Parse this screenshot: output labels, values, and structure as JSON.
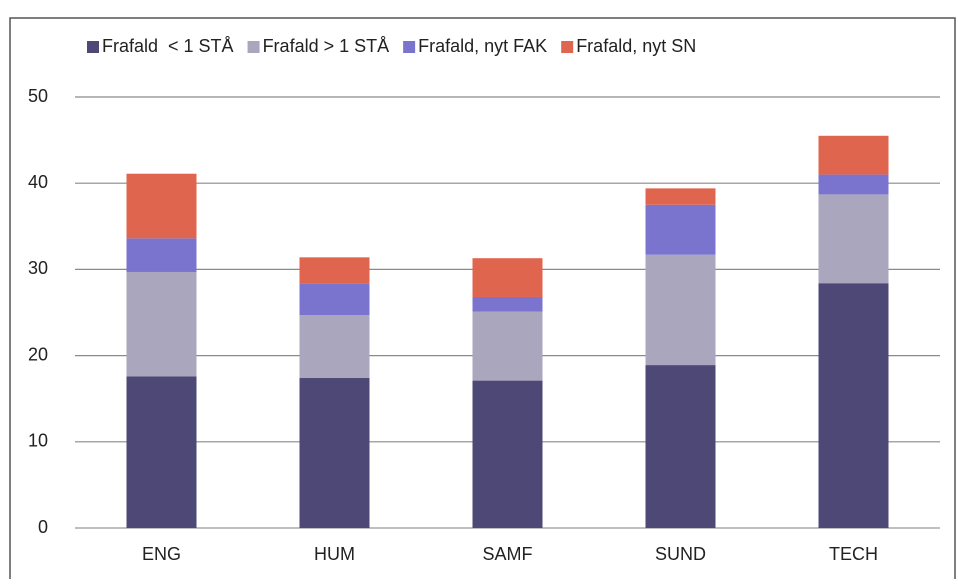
{
  "chart_data": {
    "type": "stacked_bar",
    "categories": [
      "ENG",
      "HUM",
      "SAMF",
      "SUND",
      "TECH"
    ],
    "series": [
      {
        "name": "Frafald  < 1 STÅ",
        "color": "#4e4876",
        "values": [
          17.6,
          17.4,
          17.1,
          18.9,
          28.4
        ]
      },
      {
        "name": "Frafald > 1 STÅ",
        "color": "#a9a6bd",
        "values": [
          12.1,
          7.3,
          8.0,
          12.8,
          10.3
        ]
      },
      {
        "name": "Frafald, nyt FAK",
        "color": "#7b74cf",
        "values": [
          3.9,
          3.7,
          1.7,
          5.8,
          2.3
        ]
      },
      {
        "name": "Frafald, nyt SN",
        "color": "#e0654f",
        "values": [
          7.5,
          3.0,
          4.5,
          1.9,
          4.5
        ]
      }
    ],
    "ylim": [
      0,
      50
    ],
    "yticks": [
      0,
      10,
      20,
      30,
      40,
      50
    ],
    "grid": true,
    "legend": "top"
  }
}
